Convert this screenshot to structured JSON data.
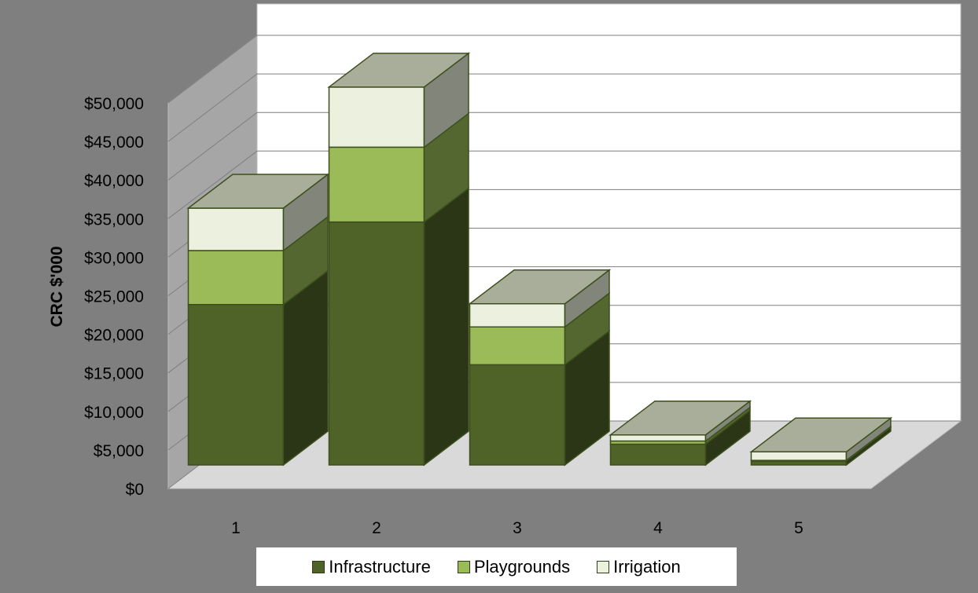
{
  "chart_data": {
    "type": "bar",
    "stacked": true,
    "three_d": true,
    "title": "",
    "xlabel": "",
    "ylabel": "CRC $'000",
    "categories": [
      "1",
      "2",
      "3",
      "4",
      "5"
    ],
    "series": [
      {
        "name": "Infrastructure",
        "color": "#4f6228",
        "values": [
          20800,
          31500,
          13000,
          2700,
          500
        ]
      },
      {
        "name": "Playgrounds",
        "color": "#9bbb59",
        "values": [
          7000,
          9700,
          4900,
          400,
          100
        ]
      },
      {
        "name": "Irrigation",
        "color": "#ebf1de",
        "values": [
          5500,
          7800,
          3000,
          800,
          1100
        ]
      }
    ],
    "ylim": [
      0,
      50000
    ],
    "ytick_step": 5000,
    "ytick_labels": [
      "$0",
      "$5,000",
      "$10,000",
      "$15,000",
      "$20,000",
      "$25,000",
      "$30,000",
      "$35,000",
      "$40,000",
      "$45,000",
      "$50,000"
    ],
    "grid": true,
    "legend_position": "bottom",
    "colors": {
      "background": "#7f7f7f",
      "wall": "#ffffff",
      "side_wall": "#a6a6a6",
      "floor": "#d9d9d9",
      "gridline": "#7f7f7f",
      "bar_top": "#a9ae9a"
    }
  }
}
